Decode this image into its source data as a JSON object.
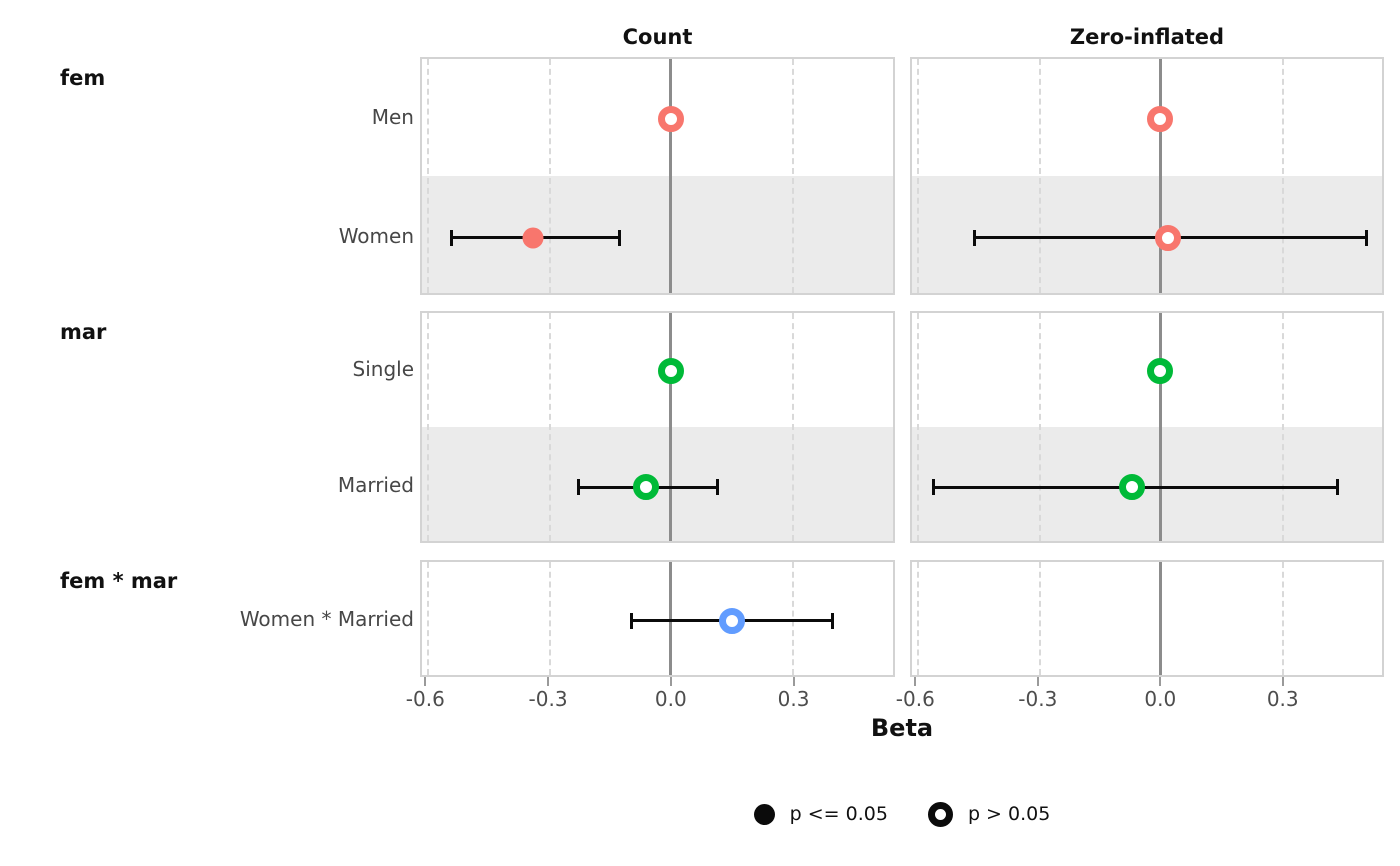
{
  "chart_data": {
    "type": "scatter",
    "subtype": "forest-dot-whisker",
    "title": "",
    "xlabel": "Beta",
    "xlim": [
      -0.613,
      0.548
    ],
    "ticks": [
      -0.6,
      -0.3,
      0.0,
      0.3
    ],
    "tick_labels": [
      "-0.6",
      "-0.3",
      "0.0",
      "0.3"
    ],
    "grid": "major-vertical-dashed, solid-zero-line",
    "columns": [
      {
        "key": "count",
        "label": "Count"
      },
      {
        "key": "zero_inflated",
        "label": "Zero-inflated"
      }
    ],
    "groups": [
      {
        "label": "fem",
        "color": "#F8766D",
        "rows": [
          {
            "label": "Men",
            "count": {
              "estimate": 0.0,
              "ci_low": null,
              "ci_high": null,
              "significant": false
            },
            "zero_inflated": {
              "estimate": 0.0,
              "ci_low": null,
              "ci_high": null,
              "significant": false
            }
          },
          {
            "label": "Women",
            "count": {
              "estimate": -0.34,
              "ci_low": -0.54,
              "ci_high": -0.13,
              "significant": true
            },
            "zero_inflated": {
              "estimate": 0.02,
              "ci_low": -0.46,
              "ci_high": 0.5,
              "significant": false
            }
          }
        ]
      },
      {
        "label": "mar",
        "color": "#00BA38",
        "rows": [
          {
            "label": "Single",
            "count": {
              "estimate": 0.0,
              "ci_low": null,
              "ci_high": null,
              "significant": false
            },
            "zero_inflated": {
              "estimate": 0.0,
              "ci_low": null,
              "ci_high": null,
              "significant": false
            }
          },
          {
            "label": "Married",
            "count": {
              "estimate": -0.06,
              "ci_low": -0.23,
              "ci_high": 0.11,
              "significant": false
            },
            "zero_inflated": {
              "estimate": -0.07,
              "ci_low": -0.56,
              "ci_high": 0.43,
              "significant": false
            }
          }
        ]
      },
      {
        "label": "fem * mar",
        "color": "#619CFF",
        "rows": [
          {
            "label": "Women * Married",
            "count": {
              "estimate": 0.15,
              "ci_low": -0.1,
              "ci_high": 0.39,
              "significant": false
            },
            "zero_inflated": null
          }
        ]
      }
    ],
    "legend": [
      {
        "marker": "filled",
        "label": "p <= 0.05"
      },
      {
        "marker": "open",
        "label": "p > 0.05"
      }
    ],
    "legend_position": "bottom-center",
    "colors": {
      "significant_marker": "filled",
      "nonsignificant_marker": "open-ring",
      "zero_line": "#8c8c8c",
      "gridline": "#d9d9d9",
      "stripe": "#ebebeb",
      "error_bar": "#0b0b0b"
    }
  }
}
